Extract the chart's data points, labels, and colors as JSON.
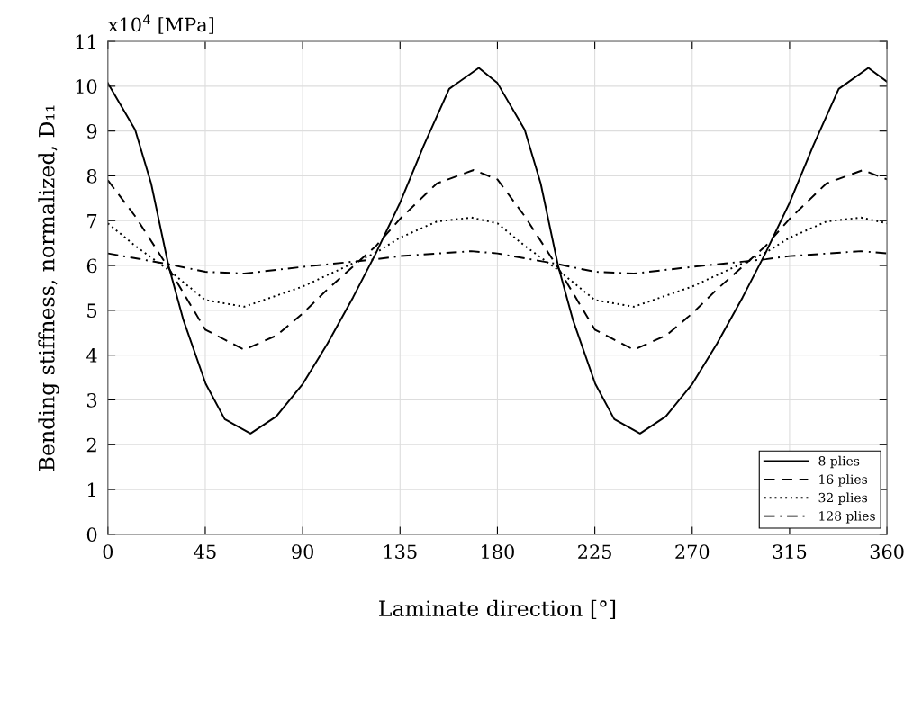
{
  "chart_data": {
    "type": "line",
    "xlabel": "Laminate direction [°]",
    "ylabel": "Bending stiffness, normalized, D₁₁",
    "annotations": [
      "x10$^{4}$ [MPa]"
    ],
    "xlim": [
      0,
      360
    ],
    "xticks": [
      0,
      45,
      90,
      135,
      180,
      225,
      270,
      315,
      360
    ],
    "ylim": [
      0,
      11
    ],
    "yticks": [
      0,
      1,
      2,
      3,
      4,
      5,
      6,
      7,
      8,
      9,
      10,
      11
    ],
    "grid": true,
    "legend": "bottom right",
    "series": [
      {
        "name": "8 plies",
        "color": "#000000",
        "line_style": "solid",
        "x": [
          0,
          12.6,
          20,
          28,
          34.8,
          45.2,
          54,
          65.9,
          77.8,
          90.1,
          101.5,
          113.3,
          123.7,
          135,
          145.9,
          157.7,
          171.4,
          180,
          192.6,
          200,
          208,
          214.8,
          225.2,
          234,
          245.9,
          257.8,
          270.1,
          281.5,
          293.3,
          303.7,
          315,
          325.9,
          337.7,
          351.4,
          360
        ],
        "values": [
          10.07,
          9.03,
          7.83,
          6.0,
          4.8,
          3.36,
          2.57,
          2.25,
          2.63,
          3.36,
          4.26,
          5.29,
          6.26,
          7.4,
          8.67,
          9.94,
          10.41,
          10.07,
          9.03,
          7.83,
          6.0,
          4.8,
          3.36,
          2.57,
          2.25,
          2.63,
          3.36,
          4.26,
          5.29,
          6.26,
          7.4,
          8.67,
          9.94,
          10.41,
          10.1
        ]
      },
      {
        "name": "16 plies",
        "color": "#000000",
        "line_style": "dashed",
        "x": [
          0,
          12.6,
          28,
          45,
          63,
          78,
          90,
          101.5,
          124,
          135,
          152,
          169,
          180,
          192.6,
          208,
          225,
          243,
          258,
          270,
          281.5,
          304,
          315,
          332,
          349,
          360
        ],
        "values": [
          7.9,
          7.1,
          5.95,
          4.57,
          4.12,
          4.44,
          4.93,
          5.47,
          6.44,
          7.04,
          7.83,
          8.13,
          7.92,
          7.1,
          5.95,
          4.57,
          4.12,
          4.44,
          4.93,
          5.47,
          6.44,
          7.04,
          7.83,
          8.13,
          7.92
        ]
      },
      {
        "name": "32 plies",
        "color": "#000000",
        "line_style": "dotted",
        "x": [
          0,
          12.6,
          28,
          45,
          63,
          90,
          124,
          135,
          152,
          168,
          180,
          192.6,
          208,
          225,
          243,
          270,
          304,
          315,
          332,
          348,
          360
        ],
        "values": [
          6.94,
          6.44,
          5.9,
          5.23,
          5.08,
          5.53,
          6.29,
          6.62,
          6.98,
          7.07,
          6.94,
          6.44,
          5.9,
          5.23,
          5.08,
          5.53,
          6.29,
          6.62,
          6.98,
          7.07,
          6.94
        ]
      },
      {
        "name": "128 plies",
        "color": "#000000",
        "line_style": "dashdot",
        "x": [
          0,
          28,
          45,
          63,
          90,
          124,
          135,
          168,
          180,
          208,
          225,
          243,
          270,
          304,
          315,
          348,
          360
        ],
        "values": [
          6.27,
          6.03,
          5.86,
          5.82,
          5.97,
          6.14,
          6.21,
          6.32,
          6.27,
          6.03,
          5.86,
          5.82,
          5.97,
          6.14,
          6.21,
          6.32,
          6.27
        ]
      }
    ]
  }
}
